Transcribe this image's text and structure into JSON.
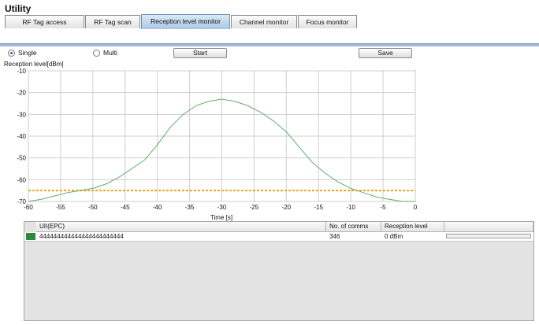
{
  "window": {
    "title": "Utility"
  },
  "tabs": [
    {
      "label": "RF Tag access",
      "active": false
    },
    {
      "label": "RF Tag scan",
      "active": false
    },
    {
      "label": "Reception level monitor",
      "active": true
    },
    {
      "label": "Channel monitor",
      "active": false
    },
    {
      "label": "Focus monitor",
      "active": false
    }
  ],
  "mode": {
    "single_label": "Single",
    "multi_label": "Multi",
    "selected": "Single"
  },
  "buttons": {
    "start": "Start",
    "save": "Save"
  },
  "chart_data": {
    "type": "line",
    "title": "",
    "ylabel": "Reception level[dBm]",
    "xlabel": "Time [s]",
    "xlim": [
      -60,
      0
    ],
    "ylim": [
      -70,
      -10
    ],
    "xticks": [
      -60,
      -55,
      -50,
      -45,
      -40,
      -35,
      -30,
      -25,
      -20,
      -15,
      -10,
      -5,
      0
    ],
    "yticks": [
      -10,
      -20,
      -30,
      -40,
      -50,
      -60,
      -70
    ],
    "grid": true,
    "threshold": -65,
    "series": [
      {
        "color": "#5fae68",
        "x": [
          -60,
          -58,
          -56,
          -54,
          -52,
          -50,
          -48,
          -46,
          -44,
          -42,
          -40,
          -38,
          -36,
          -34,
          -32,
          -30,
          -28,
          -26,
          -24,
          -22,
          -20,
          -18,
          -16,
          -14,
          -12,
          -10,
          -8,
          -6,
          -4,
          -2,
          0
        ],
        "y": [
          -70,
          -69,
          -67.5,
          -66,
          -65,
          -64,
          -62,
          -59,
          -55,
          -51,
          -44,
          -36,
          -30,
          -26,
          -24,
          -23,
          -24,
          -26,
          -29,
          -33,
          -38,
          -45,
          -52,
          -57,
          -61,
          -64,
          -66,
          -68,
          -69,
          -70,
          -70
        ]
      }
    ],
    "colors": {
      "line": "#5fae68",
      "threshold": "#f0a21a",
      "grid": "#cfcfcf"
    }
  },
  "table": {
    "columns": [
      "UII(EPC)",
      "No. of comms",
      "Reception level",
      ""
    ],
    "rows": [
      {
        "uii": "444444444444444444444444",
        "comms": "346",
        "level": "0 dBm",
        "level_fraction": 0
      }
    ],
    "marker_color": "#2b8a3e"
  }
}
